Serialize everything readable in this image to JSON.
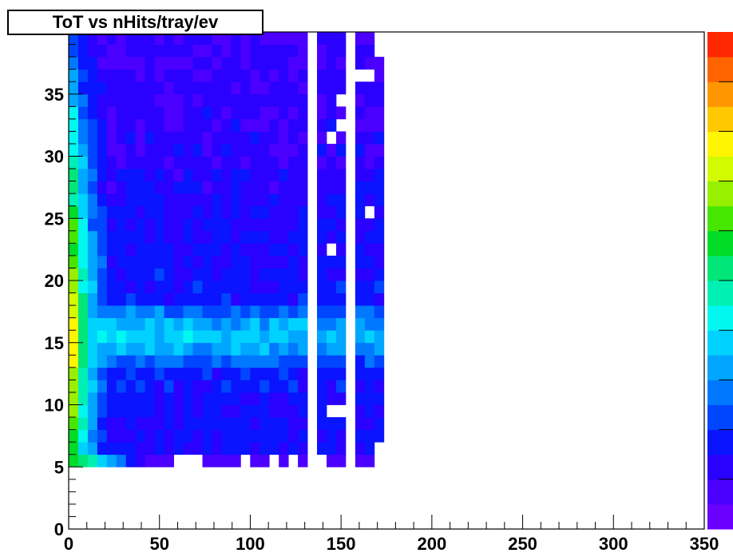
{
  "chart_data": {
    "type": "heatmap",
    "title": "ToT vs nHits/tray/ev",
    "xlabel": "",
    "ylabel": "",
    "xlim": [
      0,
      350
    ],
    "ylim": [
      0,
      40
    ],
    "x_ticks": [
      "0",
      "50",
      "100",
      "150",
      "200",
      "250",
      "300",
      "350"
    ],
    "y_ticks": [
      "0",
      "5",
      "10",
      "15",
      "20",
      "25",
      "30",
      "35"
    ],
    "grid": false,
    "bin_width_x": 5.26,
    "bin_width_y": 1,
    "x_data_extent": [
      0,
      170
    ],
    "y_data_extent": [
      5,
      40
    ],
    "color_scale": {
      "levels": 20,
      "colors": [
        "#6a00ff",
        "#4b00ff",
        "#2a00ff",
        "#0a14ff",
        "#0046ff",
        "#0078ff",
        "#00a6ff",
        "#00d2ff",
        "#00f8f0",
        "#00f0b4",
        "#00e678",
        "#00dc28",
        "#46e600",
        "#96f000",
        "#d2fa00",
        "#fff500",
        "#ffc800",
        "#ff9600",
        "#ff6400",
        "#ff2800"
      ]
    },
    "description_note": "Density peaks near x=0-10, y=15-16 (red); ridge at y~15-16 extending to x~170; band gap columns near x~132 and x~156; data absent for x>172"
  }
}
